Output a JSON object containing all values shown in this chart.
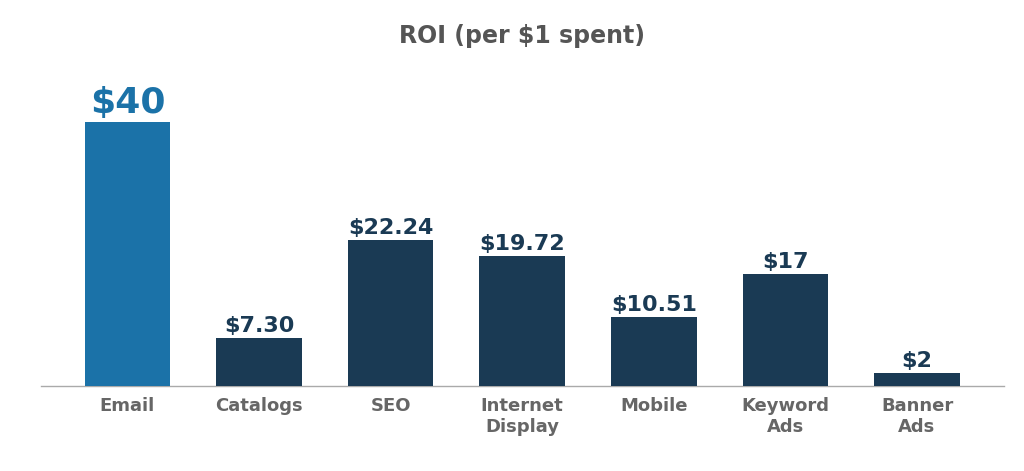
{
  "title": "ROI (per $1 spent)",
  "title_fontsize": 17,
  "title_color": "#555555",
  "title_fontweight": "bold",
  "categories": [
    "Email",
    "Catalogs",
    "SEO",
    "Internet\nDisplay",
    "Mobile",
    "Keyword\nAds",
    "Banner\nAds"
  ],
  "values": [
    40,
    7.3,
    22.24,
    19.72,
    10.51,
    17,
    2
  ],
  "labels": [
    "$40",
    "$7.30",
    "$22.24",
    "$19.72",
    "$10.51",
    "$17",
    "$2"
  ],
  "bar_color_email": "#1b72a8",
  "bar_color_rest": "#1a3a54",
  "background_color": "#ffffff",
  "label_fontsize_large": 26,
  "label_fontsize_small": 16,
  "label_color": "#1a3a54",
  "label_fontweight": "bold",
  "tick_label_fontsize": 13,
  "tick_label_color": "#666666",
  "tick_label_fontweight": "bold",
  "ylim": [
    0,
    50
  ],
  "bar_width": 0.65
}
